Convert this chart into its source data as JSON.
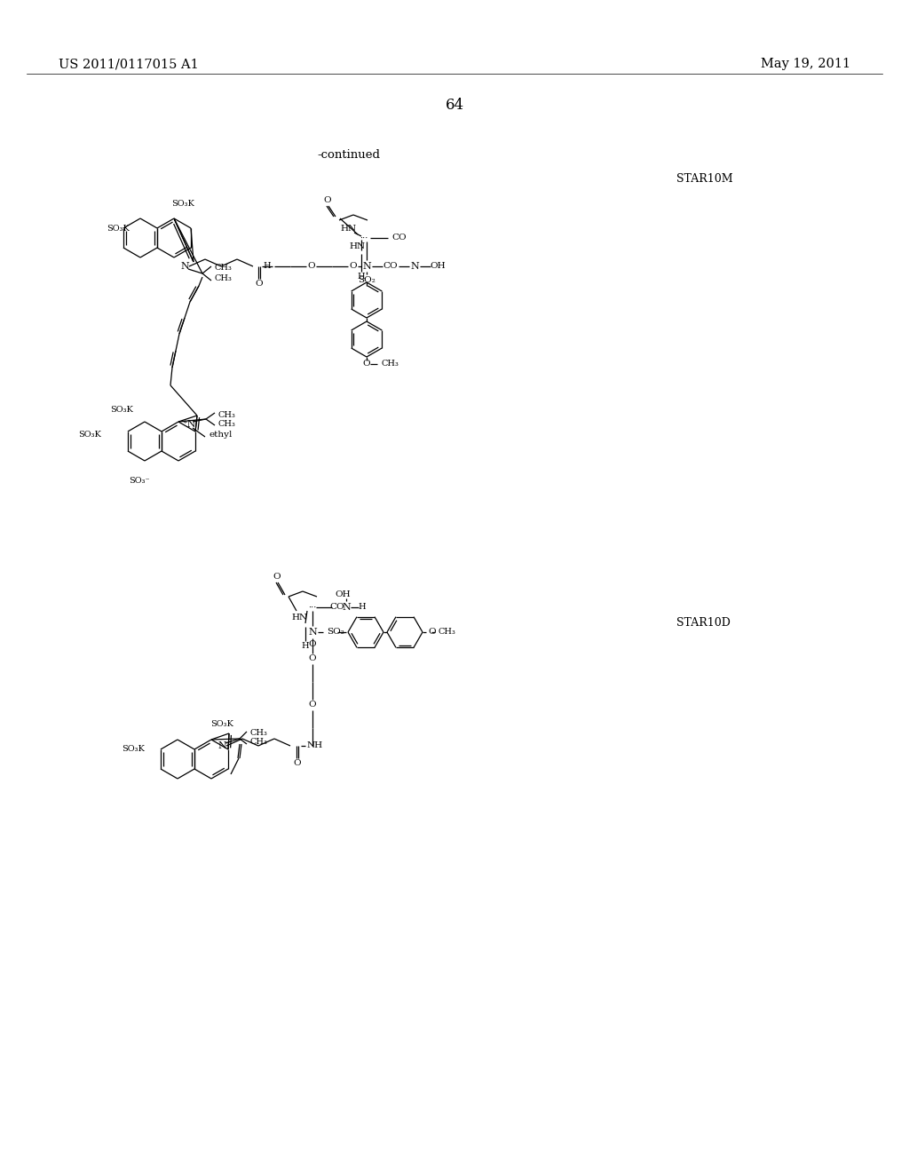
{
  "header_left": "US 2011/0117015 A1",
  "header_right": "May 19, 2011",
  "page_number": "64",
  "continued_text": "-continued",
  "label_top": "STAR10M",
  "label_bottom": "STAR10D",
  "background_color": "#ffffff",
  "text_color": "#000000"
}
